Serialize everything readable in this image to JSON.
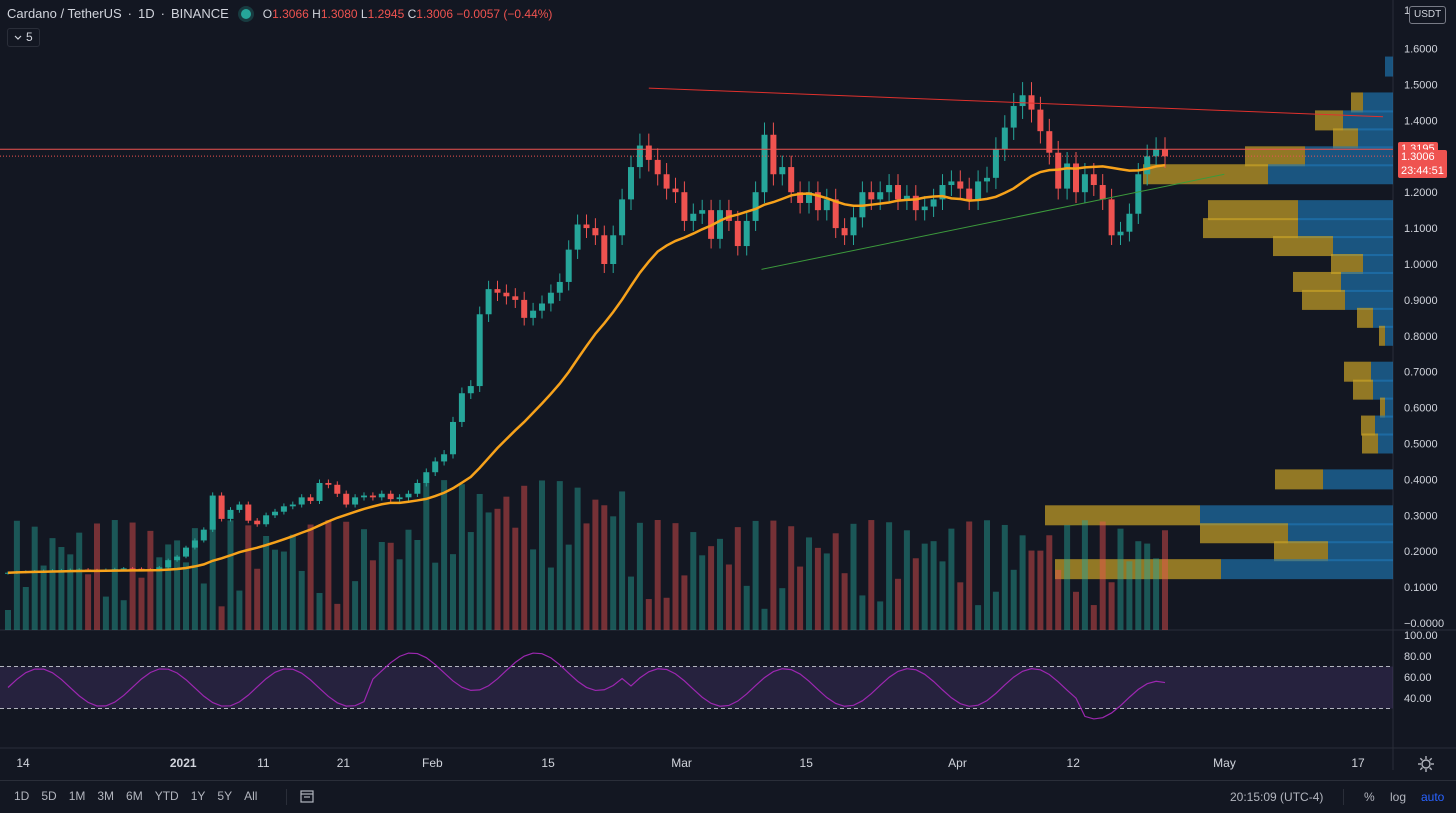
{
  "header": {
    "symbol": "Cardano / TetherUS",
    "interval": "1D",
    "exchange": "BINANCE",
    "ohlc_open_label": "O",
    "ohlc_open": "1.3066",
    "ohlc_high_label": "H",
    "ohlc_high": "1.3080",
    "ohlc_low_label": "L",
    "ohlc_low": "1.2945",
    "ohlc_close_label": "C",
    "ohlc_close": "1.3006",
    "ohlc_change": "−0.0057 (−0.44%)",
    "indicator_badge": "5"
  },
  "price_scale": {
    "currency": "USDT",
    "top_partial_label": "1",
    "ticks": [
      "1.6000",
      "1.5000",
      "1.4000",
      "1.3000",
      "1.2000",
      "1.1000",
      "1.0000",
      "0.9000",
      "0.8000",
      "0.7000",
      "0.6000",
      "0.5000",
      "0.4000",
      "0.3000",
      "0.2000",
      "0.1000",
      "−0.0000"
    ],
    "tick_values": [
      1.6,
      1.5,
      1.4,
      1.3,
      1.2,
      1.1,
      1.0,
      0.9,
      0.8,
      0.7,
      0.6,
      0.5,
      0.4,
      0.3,
      0.2,
      0.1,
      0.0
    ],
    "alert_level": "1.3195",
    "alert_value": 1.3195,
    "last_price": "1.3006",
    "last_value": 1.3006,
    "countdown": "23:44:51"
  },
  "rsi_scale": {
    "ticks": [
      "100.00",
      "80.00",
      "60.00",
      "40.00"
    ],
    "tick_values": [
      100,
      80,
      60,
      40
    ]
  },
  "time_axis": {
    "labels": [
      "14",
      "2021",
      "11",
      "21",
      "Feb",
      "15",
      "Mar",
      "15",
      "Apr",
      "12",
      "May",
      "17"
    ],
    "indices": [
      0,
      18,
      27,
      36,
      46,
      59,
      74,
      88,
      105,
      118,
      135,
      150
    ]
  },
  "bottom_bar": {
    "timeframes": [
      "1D",
      "5D",
      "1M",
      "3M",
      "6M",
      "YTD",
      "1Y",
      "5Y",
      "All"
    ],
    "clock": "20:15:09 (UTC-4)",
    "percent": "%",
    "log": "log",
    "auto": "auto"
  },
  "colors": {
    "background": "#131722",
    "up": "#26a69a",
    "down": "#ef5350",
    "ma": "#f7a21b",
    "rsi": "#9c27b0",
    "resistance_line": "#e0312d",
    "support_line": "#3c9a3c",
    "vp_up": "#1f77b4",
    "vp_down": "#c9a227"
  },
  "chart_data": {
    "type": "candlestick",
    "symbol": "ADA/USDT",
    "timeframe": "1D",
    "closes": [
      0.14,
      0.142,
      0.143,
      0.144,
      0.145,
      0.146,
      0.147,
      0.148,
      0.149,
      0.147,
      0.146,
      0.148,
      0.15,
      0.152,
      0.151,
      0.149,
      0.148,
      0.155,
      0.175,
      0.185,
      0.21,
      0.23,
      0.26,
      0.355,
      0.29,
      0.315,
      0.33,
      0.285,
      0.275,
      0.3,
      0.31,
      0.325,
      0.33,
      0.35,
      0.34,
      0.39,
      0.385,
      0.36,
      0.33,
      0.35,
      0.355,
      0.35,
      0.36,
      0.345,
      0.35,
      0.36,
      0.39,
      0.42,
      0.45,
      0.47,
      0.56,
      0.64,
      0.66,
      0.86,
      0.93,
      0.92,
      0.91,
      0.9,
      0.85,
      0.87,
      0.89,
      0.92,
      0.95,
      1.04,
      1.11,
      1.1,
      1.08,
      1.0,
      1.08,
      1.18,
      1.27,
      1.33,
      1.29,
      1.25,
      1.21,
      1.2,
      1.12,
      1.14,
      1.15,
      1.07,
      1.15,
      1.12,
      1.05,
      1.12,
      1.2,
      1.36,
      1.25,
      1.27,
      1.2,
      1.17,
      1.2,
      1.15,
      1.18,
      1.1,
      1.08,
      1.13,
      1.2,
      1.18,
      1.2,
      1.22,
      1.18,
      1.19,
      1.15,
      1.16,
      1.18,
      1.22,
      1.23,
      1.21,
      1.18,
      1.23,
      1.24,
      1.32,
      1.38,
      1.44,
      1.47,
      1.43,
      1.37,
      1.31,
      1.21,
      1.28,
      1.2,
      1.25,
      1.22,
      1.18,
      1.08,
      1.09,
      1.14,
      1.25,
      1.3,
      1.32,
      1.3
    ],
    "volume_profile": {
      "price_bins": [
        1.55,
        1.45,
        1.35,
        1.3,
        1.25,
        1.15,
        1.05,
        0.95,
        0.85,
        0.75,
        0.65,
        0.55,
        0.45,
        0.35,
        0.25,
        0.15
      ],
      "note_units": "relative volume"
    },
    "moving_average": "orange",
    "rsi": {
      "upper_band": 70,
      "lower_band": 30
    }
  }
}
